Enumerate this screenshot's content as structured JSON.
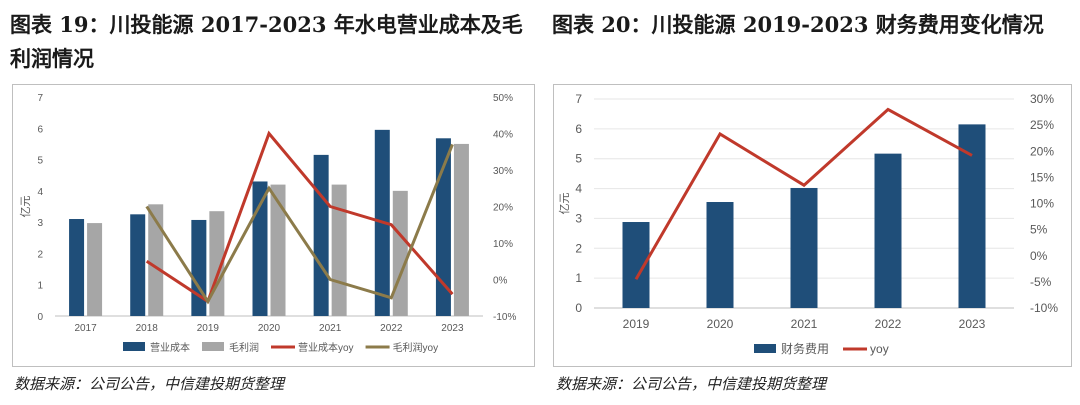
{
  "left_figure": {
    "title": "图表 19：川投能源 2017-2023 年水电营业成本及毛利润情况",
    "source": "数据来源：公司公告，中信建投期货整理"
  },
  "right_figure": {
    "title": "图表 20：川投能源 2019-2023 财务费用变化情况",
    "source": "数据来源：公司公告，中信建投期货整理"
  },
  "colors": {
    "navy": "#1f4e79",
    "gray": "#a6a6a6",
    "red": "#c0392b",
    "olive": "#8c7b4a"
  },
  "chart_data": [
    {
      "type": "bar",
      "categories": [
        "2017",
        "2018",
        "2019",
        "2020",
        "2021",
        "2022",
        "2023"
      ],
      "ylabel": "亿元",
      "ylim": [
        0,
        7
      ],
      "y2lim": [
        -10,
        50
      ],
      "y_ticks": [
        "0",
        "1",
        "2",
        "3",
        "4",
        "5",
        "6",
        "7"
      ],
      "y2_ticks": [
        "-10%",
        "0%",
        "10%",
        "20%",
        "30%",
        "40%",
        "50%"
      ],
      "series": [
        {
          "name": "营业成本",
          "kind": "bar",
          "axis": "left",
          "color": "#1f4e79",
          "values": [
            3.1,
            3.25,
            3.07,
            4.3,
            5.15,
            5.95,
            5.68
          ]
        },
        {
          "name": "毛利润",
          "kind": "bar",
          "axis": "left",
          "color": "#a6a6a6",
          "values": [
            2.97,
            3.57,
            3.35,
            4.2,
            4.2,
            4.0,
            5.5
          ]
        },
        {
          "name": "营业成本yoy",
          "kind": "line",
          "axis": "right",
          "color": "#c0392b",
          "values": [
            null,
            5,
            -6,
            40,
            20,
            15,
            -4
          ]
        },
        {
          "name": "毛利润yoy",
          "kind": "line",
          "axis": "right",
          "color": "#8c7b4a",
          "values": [
            null,
            20,
            -6,
            25,
            0,
            -5,
            37
          ]
        }
      ],
      "legend_position": "bottom"
    },
    {
      "type": "bar",
      "categories": [
        "2019",
        "2020",
        "2021",
        "2022",
        "2023"
      ],
      "ylabel": "亿元",
      "ylim": [
        0,
        7
      ],
      "y2lim": [
        -10,
        30
      ],
      "y_ticks": [
        "0",
        "1",
        "2",
        "3",
        "4",
        "5",
        "6",
        "7"
      ],
      "y2_ticks": [
        "-10%",
        "-5%",
        "0%",
        "5%",
        "10%",
        "15%",
        "20%",
        "25%",
        "30%"
      ],
      "series": [
        {
          "name": "财务费用",
          "kind": "bar",
          "axis": "left",
          "color": "#1f4e79",
          "values": [
            2.88,
            3.55,
            4.02,
            5.17,
            6.15
          ]
        },
        {
          "name": "yoy",
          "kind": "line",
          "axis": "right",
          "color": "#c0392b",
          "values": [
            -4.5,
            23.3,
            13.5,
            28,
            19.2
          ]
        }
      ],
      "legend_position": "bottom"
    }
  ]
}
